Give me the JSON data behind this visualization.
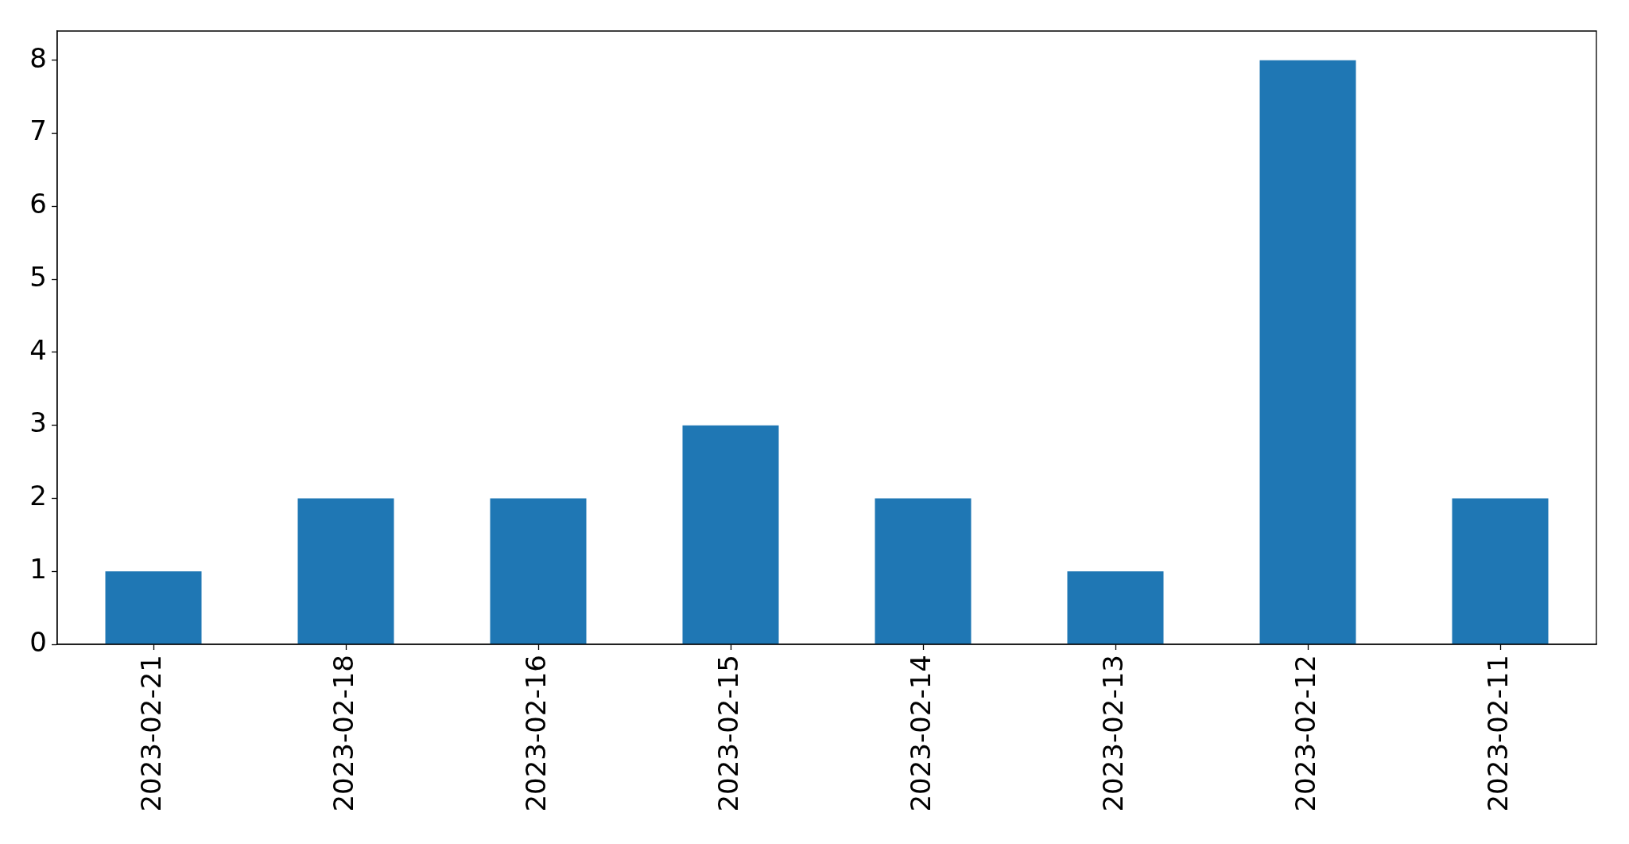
{
  "chart_data": {
    "type": "bar",
    "categories": [
      "2023-02-21",
      "2023-02-18",
      "2023-02-16",
      "2023-02-15",
      "2023-02-14",
      "2023-02-13",
      "2023-02-12",
      "2023-02-11"
    ],
    "values": [
      1,
      2,
      2,
      3,
      2,
      1,
      8,
      2
    ],
    "color": "#1f77b4",
    "ylim": [
      0,
      8.4
    ],
    "yticks": [
      0,
      1,
      2,
      3,
      4,
      5,
      6,
      7,
      8
    ]
  }
}
